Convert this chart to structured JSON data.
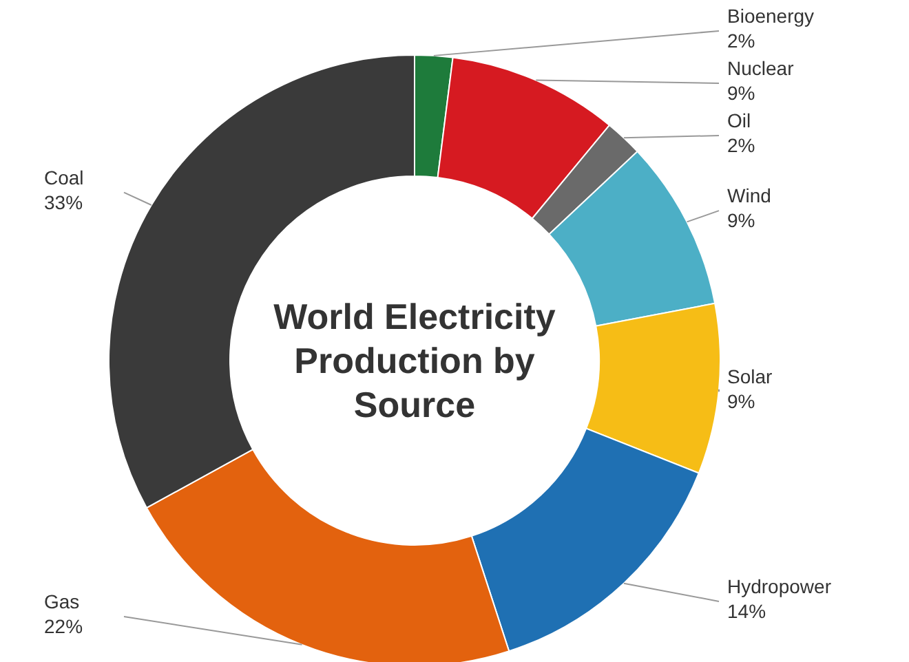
{
  "chart_data": {
    "type": "donut",
    "title": "World Electricity Production by Source",
    "categories": [
      "Bioenergy",
      "Nuclear",
      "Oil",
      "Wind",
      "Solar",
      "Hydropower",
      "Gas",
      "Coal"
    ],
    "values": [
      2,
      9,
      2,
      9,
      9,
      14,
      22,
      33
    ],
    "value_labels": [
      "2%",
      "9%",
      "2%",
      "9%",
      "9%",
      "14%",
      "22%",
      "33%"
    ],
    "colors": [
      "#1e7b3b",
      "#d61a21",
      "#6a6a6a",
      "#4cafc6",
      "#f6bd16",
      "#1f70b3",
      "#e3620e",
      "#3a3a3a"
    ]
  }
}
